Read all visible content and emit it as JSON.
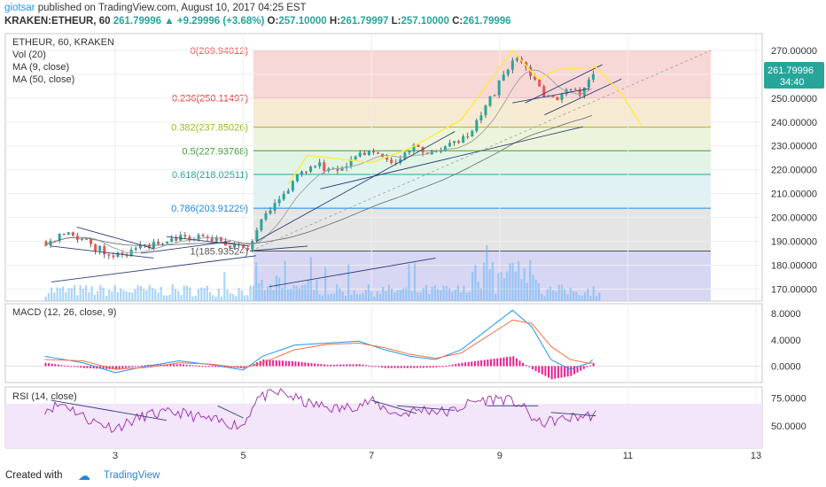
{
  "header": {
    "publisher_user": "giotsar",
    "publisher_text": "published on TradingView.com, August 10, 2017 04:25 EST",
    "symbol": "KRAKEN:ETHEUR, 60",
    "last": "261.79996",
    "change": "+9.29996 (+3.68%)",
    "o_label": "O:",
    "o": "257.10000",
    "h_label": "H:",
    "h": "261.79997",
    "l_label": "L:",
    "l": "257.10000",
    "c_label": "C:",
    "c": "261.79996"
  },
  "legend": {
    "title": "ETHEUR, 60, KRAKEN",
    "vol": "Vol (20)",
    "ma9": "MA (9, close)",
    "ma50": "MA (50, close)"
  },
  "footer": {
    "created_with": "Created with",
    "brand": "TradingView"
  },
  "colors": {
    "up": "#26a69a",
    "down": "#ef5350",
    "ma9": "#9e9e9e",
    "ma50": "#757575",
    "macd": "#2196f3",
    "signal": "#ff7043",
    "hist": "#e91e8c",
    "rsi": "#9c27b0",
    "trend": "#2c3e7a",
    "projection": "#ffeb3b",
    "volume": "#64b5f6"
  },
  "chart_data": [
    {
      "type": "candlestick",
      "title": "ETHEUR, 60, KRAKEN",
      "x_ticks": [
        "3",
        "5",
        "7",
        "9",
        "11",
        "13"
      ],
      "y_ticks": [
        "170.00000",
        "180.00000",
        "190.00000",
        "200.00000",
        "210.00000",
        "220.00000",
        "230.00000",
        "240.00000",
        "250.00000",
        "260.00000",
        "270.00000"
      ],
      "ylim": [
        165,
        277
      ],
      "last_price_label": "261.79996",
      "countdown_label": "34:40",
      "fibonacci": [
        {
          "label": "0(269.94012)",
          "value": 269.94012,
          "color": "#ef5350",
          "band": "#f6c9c9"
        },
        {
          "label": "0.236(250.11497)",
          "value": 250.11497,
          "color": "#e53935",
          "band": "#f3e3c3"
        },
        {
          "label": "0.382(237.85026)",
          "value": 237.85026,
          "color": "#9cba24",
          "band": "#e6f2cf"
        },
        {
          "label": "0.5(227.93768)",
          "value": 227.93768,
          "color": "#43a047",
          "band": "#d7f0dc"
        },
        {
          "label": "0.618(218.02511)",
          "value": 218.02511,
          "color": "#26a69a",
          "band": "#d6eef0"
        },
        {
          "label": "0.786(203.91229)",
          "value": 203.91229,
          "color": "#1e88e5",
          "band": "#dcdcdc"
        },
        {
          "label": "1(185.93524)",
          "value": 185.93524,
          "color": "#555555",
          "band": "#c9caf0"
        }
      ],
      "price_keypoints": [
        [
          1.9,
          190
        ],
        [
          2.3,
          194
        ],
        [
          2.6,
          188
        ],
        [
          3.0,
          184
        ],
        [
          3.5,
          188
        ],
        [
          4.0,
          192
        ],
        [
          4.5,
          191
        ],
        [
          4.9,
          187
        ],
        [
          5.1,
          188
        ],
        [
          5.3,
          200
        ],
        [
          5.6,
          210
        ],
        [
          5.9,
          219
        ],
        [
          6.1,
          223
        ],
        [
          6.4,
          219
        ],
        [
          6.7,
          225
        ],
        [
          7.0,
          229
        ],
        [
          7.3,
          222
        ],
        [
          7.6,
          229
        ],
        [
          7.9,
          227
        ],
        [
          8.2,
          230
        ],
        [
          8.5,
          234
        ],
        [
          8.8,
          248
        ],
        [
          9.1,
          262
        ],
        [
          9.25,
          268
        ],
        [
          9.5,
          258
        ],
        [
          9.7,
          250
        ],
        [
          9.9,
          249
        ],
        [
          10.0,
          252
        ],
        [
          10.2,
          252
        ],
        [
          10.4,
          257
        ],
        [
          10.5,
          262
        ]
      ],
      "moving_averages": [
        "MA (9, close)",
        "MA (50, close)"
      ]
    },
    {
      "type": "line",
      "title": "MACD (12, 26, close, 9)",
      "y_ticks": [
        "0.0000",
        "4.0000",
        "8.0000"
      ],
      "ylim": [
        -2.5,
        9.5
      ],
      "series": [
        {
          "name": "MACD",
          "keypoints": [
            [
              1.9,
              1.5
            ],
            [
              2.5,
              0.5
            ],
            [
              3.0,
              -1
            ],
            [
              3.5,
              0
            ],
            [
              4.0,
              0.8
            ],
            [
              4.5,
              0.2
            ],
            [
              5.0,
              -0.6
            ],
            [
              5.3,
              1.5
            ],
            [
              5.8,
              3.2
            ],
            [
              6.3,
              3.5
            ],
            [
              6.8,
              3.8
            ],
            [
              7.2,
              2.5
            ],
            [
              7.6,
              1.5
            ],
            [
              8.0,
              1.0
            ],
            [
              8.4,
              2.5
            ],
            [
              8.8,
              5.5
            ],
            [
              9.2,
              8.5
            ],
            [
              9.5,
              6.0
            ],
            [
              9.8,
              1.0
            ],
            [
              10.1,
              -0.5
            ],
            [
              10.4,
              0.5
            ],
            [
              10.5,
              1.5
            ]
          ]
        },
        {
          "name": "Signal",
          "keypoints": [
            [
              1.9,
              1.0
            ],
            [
              2.5,
              0.8
            ],
            [
              3.0,
              -0.5
            ],
            [
              3.5,
              -0.2
            ],
            [
              4.0,
              0.5
            ],
            [
              4.5,
              0.3
            ],
            [
              5.0,
              -0.3
            ],
            [
              5.3,
              0.5
            ],
            [
              5.8,
              2.5
            ],
            [
              6.3,
              3.3
            ],
            [
              6.8,
              3.5
            ],
            [
              7.2,
              2.8
            ],
            [
              7.6,
              1.8
            ],
            [
              8.0,
              1.2
            ],
            [
              8.4,
              2.0
            ],
            [
              8.8,
              4.5
            ],
            [
              9.2,
              7.0
            ],
            [
              9.5,
              6.5
            ],
            [
              9.8,
              3.0
            ],
            [
              10.1,
              1.0
            ],
            [
              10.4,
              0.4
            ],
            [
              10.5,
              0.7
            ]
          ]
        }
      ]
    },
    {
      "type": "line",
      "title": "RSI (14, close)",
      "y_ticks": [
        "50.0000",
        "75.0000"
      ],
      "ylim": [
        30,
        85
      ],
      "bands": [
        30,
        70
      ],
      "series": [
        {
          "name": "RSI",
          "keypoints": [
            [
              1.9,
              65
            ],
            [
              2.2,
              70
            ],
            [
              2.6,
              55
            ],
            [
              3.0,
              48
            ],
            [
              3.5,
              60
            ],
            [
              4.0,
              62
            ],
            [
              4.5,
              55
            ],
            [
              5.0,
              50
            ],
            [
              5.2,
              75
            ],
            [
              5.6,
              80
            ],
            [
              6.0,
              70
            ],
            [
              6.5,
              65
            ],
            [
              7.0,
              72
            ],
            [
              7.4,
              60
            ],
            [
              7.8,
              65
            ],
            [
              8.2,
              62
            ],
            [
              8.6,
              72
            ],
            [
              9.0,
              75
            ],
            [
              9.3,
              70
            ],
            [
              9.6,
              52
            ],
            [
              9.9,
              55
            ],
            [
              10.2,
              58
            ],
            [
              10.5,
              60
            ]
          ]
        }
      ]
    }
  ]
}
